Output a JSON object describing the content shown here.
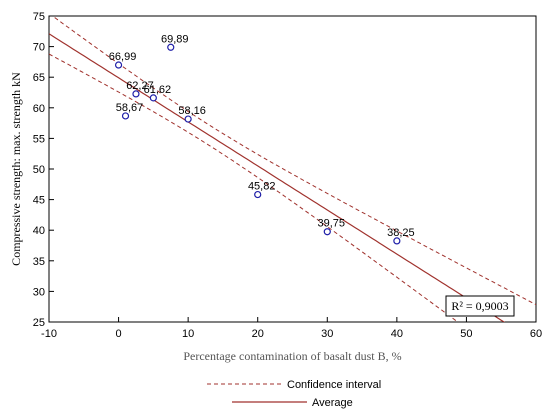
{
  "chart_data": {
    "type": "scatter",
    "title": "",
    "xlabel": "Percentage contamination of basalt dust B, %",
    "ylabel": "Compressive strength: max. strength kN",
    "xlim": [
      -10,
      60
    ],
    "ylim": [
      25,
      75
    ],
    "x_ticks": [
      -10,
      0,
      10,
      20,
      30,
      40,
      50,
      60
    ],
    "y_ticks": [
      25,
      30,
      35,
      40,
      45,
      50,
      55,
      60,
      65,
      70,
      75
    ],
    "grid": false,
    "points": [
      {
        "x": 0,
        "y": 66.99,
        "label": "66,99"
      },
      {
        "x": 7.5,
        "y": 69.89,
        "label": "69,89"
      },
      {
        "x": 2.5,
        "y": 62.27,
        "label": "62,27"
      },
      {
        "x": 5,
        "y": 61.62,
        "label": "61,62"
      },
      {
        "x": 1,
        "y": 58.67,
        "label": "58,67"
      },
      {
        "x": 10,
        "y": 58.16,
        "label": "58,16"
      },
      {
        "x": 20,
        "y": 45.82,
        "label": "45,82"
      },
      {
        "x": 30,
        "y": 39.75,
        "label": "39,75"
      },
      {
        "x": 40,
        "y": 38.25,
        "label": "38,25"
      }
    ],
    "fit": {
      "name": "Average",
      "intercept": 64.9,
      "slope": -0.72,
      "color": "#a0322d"
    },
    "confidence_interval": {
      "name": "Confidence interval",
      "color": "#a0322d"
    },
    "r2_label": "R² = 0,9003",
    "legend": [
      {
        "label": "Confidence interval",
        "style": "dashed"
      },
      {
        "label": "Average",
        "style": "solid"
      }
    ],
    "legend_position": "bottom-center",
    "point_color": "#1f1fa8"
  }
}
